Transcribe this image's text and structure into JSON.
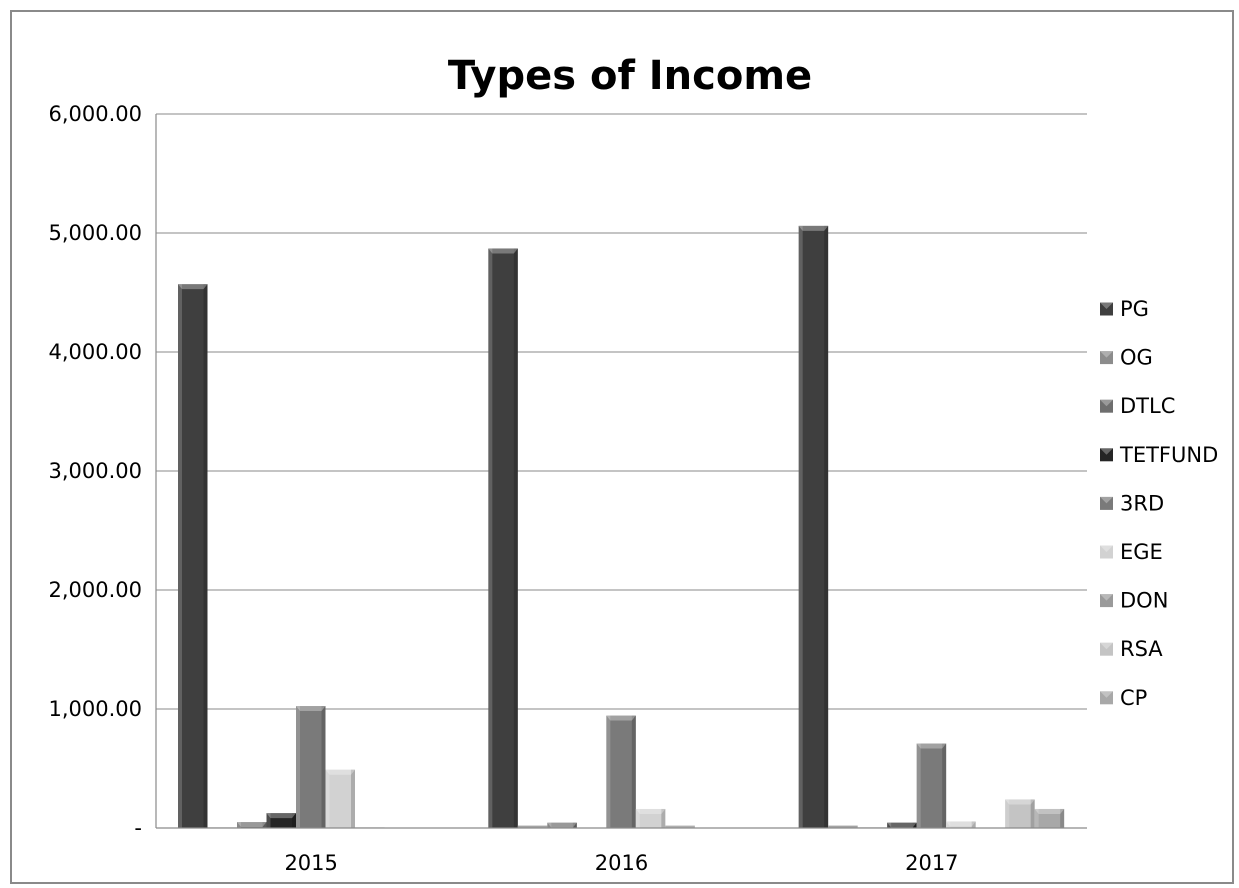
{
  "chart_data": {
    "type": "bar",
    "title": "Types of Income",
    "xlabel": "",
    "ylabel": "",
    "categories": [
      "2015",
      "2016",
      "2017"
    ],
    "ylim": [
      0,
      6000
    ],
    "yticks": [
      0,
      1000,
      2000,
      3000,
      4000,
      5000,
      6000
    ],
    "ytick_labels": [
      "-",
      "1,000.00",
      "2,000.00",
      "3,000.00",
      "4,000.00",
      "5,000.00",
      "6,000.00"
    ],
    "grid": true,
    "legend_position": "right",
    "series": [
      {
        "name": "PG",
        "color": "#3f3f3f",
        "values": [
          4570,
          4870,
          5060
        ]
      },
      {
        "name": "OG",
        "color": "#8c8c8c",
        "values": [
          5,
          20,
          20
        ]
      },
      {
        "name": "DTLC",
        "color": "#6e6e6e",
        "values": [
          50,
          45,
          5
        ]
      },
      {
        "name": "TETFUND",
        "color": "#252525",
        "values": [
          125,
          0,
          45
        ]
      },
      {
        "name": "3RD",
        "color": "#7a7a7a",
        "values": [
          1025,
          945,
          710
        ]
      },
      {
        "name": "EGE",
        "color": "#d2d2d2",
        "values": [
          490,
          160,
          55
        ]
      },
      {
        "name": "DON",
        "color": "#9a9a9a",
        "values": [
          5,
          20,
          0
        ]
      },
      {
        "name": "RSA",
        "color": "#c4c4c4",
        "values": [
          0,
          0,
          240
        ]
      },
      {
        "name": "CP",
        "color": "#a8a8a8",
        "values": [
          0,
          0,
          160
        ]
      }
    ]
  }
}
